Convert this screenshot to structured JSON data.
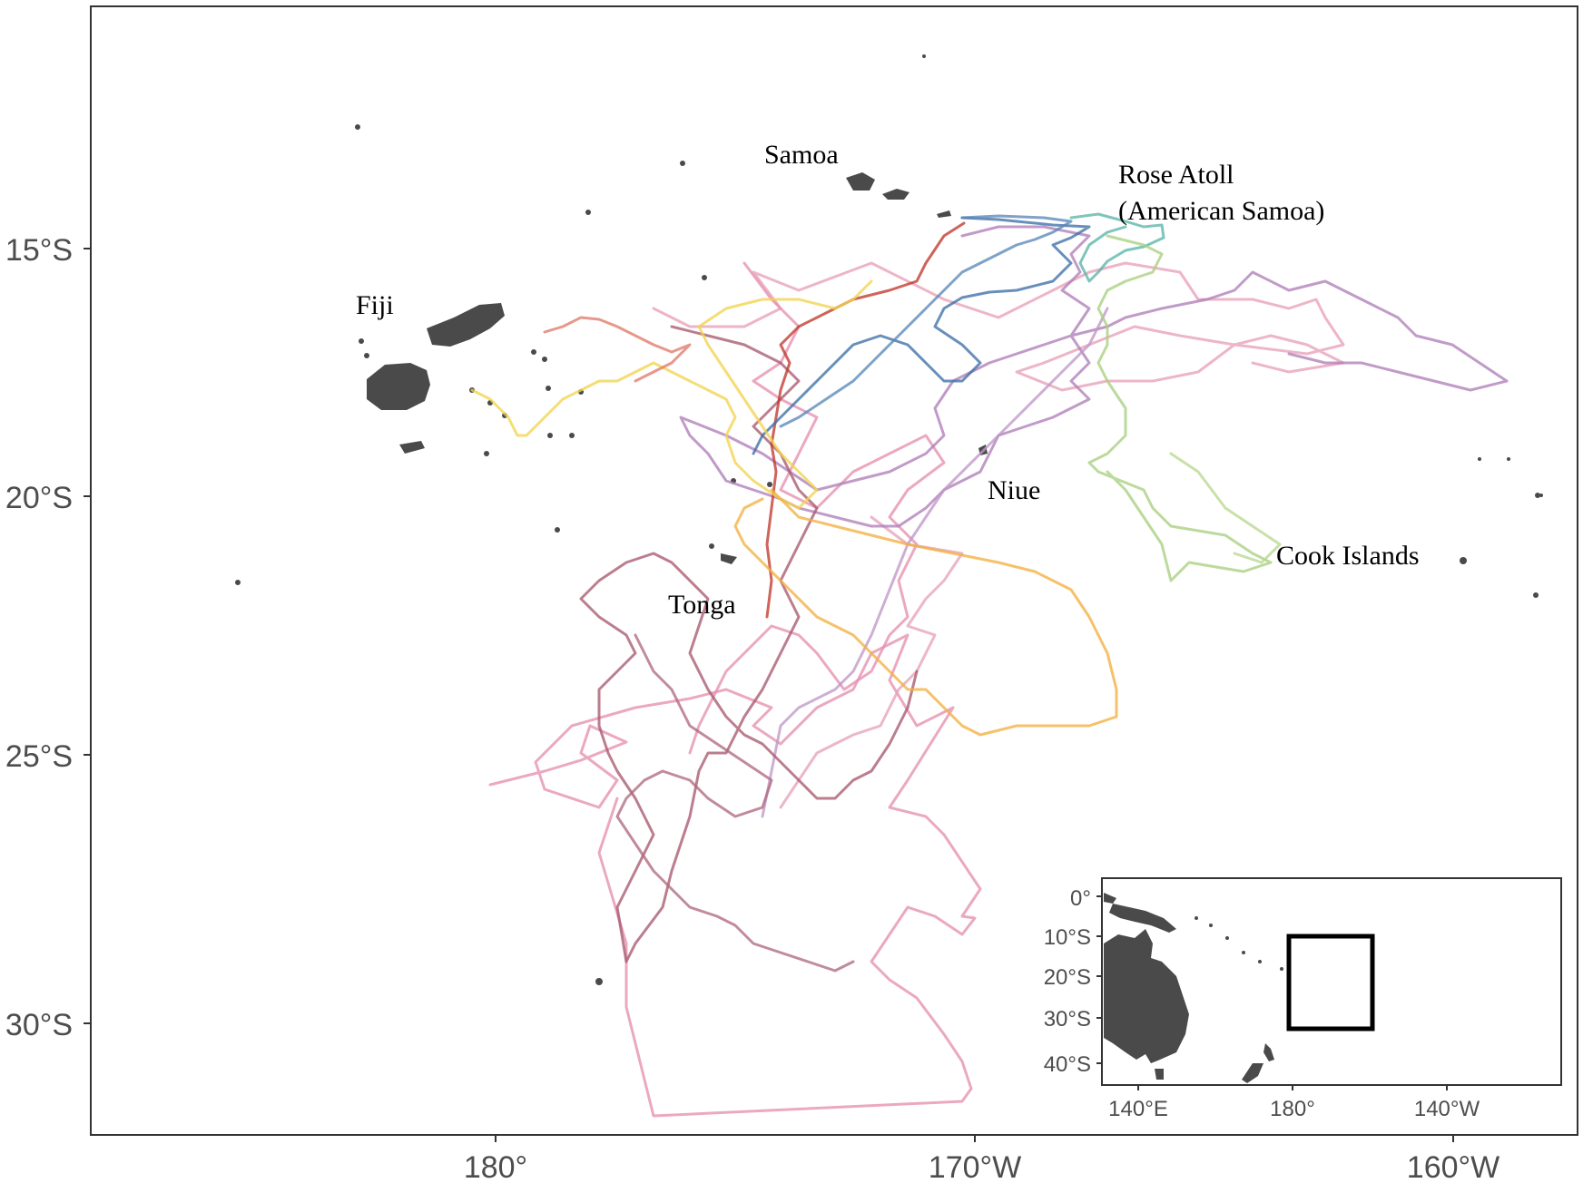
{
  "map": {
    "y_ticks": [
      "15°S",
      "20°S",
      "25°S",
      "30°S"
    ],
    "x_ticks": [
      "180°",
      "170°W",
      "160°W"
    ],
    "labels": {
      "samoa": "Samoa",
      "rose_atoll_line1": "Rose Atoll",
      "rose_atoll_line2": "(American Samoa)",
      "fiji": "Fiji",
      "niue": "Niue",
      "cook_islands": "Cook Islands",
      "tonga": "Tonga"
    },
    "colors": {
      "land": "#4a4a4a",
      "track_pink": "#e58fb0",
      "track_mauve": "#b07fb8",
      "track_brown": "#a85a6e",
      "track_red": "#c0392b",
      "track_blue": "#3d6fa8",
      "track_teal": "#5ab5a8",
      "track_green": "#a8d080",
      "track_yellow": "#f2d350",
      "track_orange": "#f4b040",
      "track_salmon": "#e07a6a"
    }
  },
  "inset": {
    "y_ticks": [
      "0°",
      "10°S",
      "20°S",
      "30°S",
      "40°S"
    ],
    "x_ticks": [
      "140°E",
      "180°",
      "140°W"
    ]
  }
}
